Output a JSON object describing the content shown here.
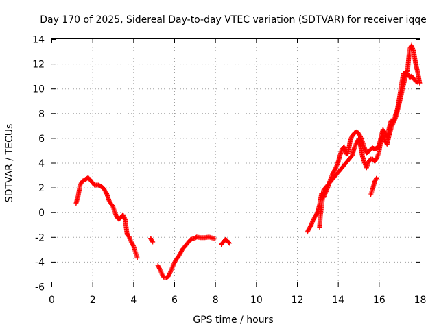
{
  "chart_data": {
    "type": "scatter",
    "title": "Day 170 of 2025, Sidereal Day-to-day VTEC variation (SDTVAR) for receiver iqqe",
    "xlabel": "GPS time / hours",
    "ylabel": "SDTVAR / TECUs",
    "xlim": [
      0,
      18
    ],
    "ylim": [
      -6,
      14
    ],
    "xticks": [
      "0",
      "2",
      "4",
      "6",
      "8",
      "10",
      "12",
      "14",
      "16",
      "18"
    ],
    "yticks": [
      "-6",
      "-4",
      "-2",
      "0",
      "2",
      "4",
      "6",
      "8",
      "10",
      "12",
      "14"
    ],
    "grid": true,
    "marker": "+",
    "series": [
      {
        "name": "SDTVAR",
        "color": "#ff0000",
        "segments": [
          [
            [
              1.2,
              0.7
            ],
            [
              1.3,
              1.3
            ],
            [
              1.4,
              2.2
            ],
            [
              1.5,
              2.5
            ],
            [
              1.7,
              2.7
            ],
            [
              1.8,
              2.8
            ],
            [
              1.9,
              2.6
            ],
            [
              2.0,
              2.4
            ],
            [
              2.1,
              2.2
            ],
            [
              2.2,
              2.2
            ],
            [
              2.3,
              2.2
            ],
            [
              2.4,
              2.1
            ],
            [
              2.5,
              2.0
            ],
            [
              2.6,
              1.8
            ],
            [
              2.7,
              1.5
            ],
            [
              2.8,
              1.0
            ],
            [
              2.9,
              0.7
            ],
            [
              3.0,
              0.5
            ],
            [
              3.1,
              0.0
            ],
            [
              3.2,
              -0.4
            ],
            [
              3.3,
              -0.6
            ],
            [
              3.4,
              -0.4
            ],
            [
              3.5,
              -0.2
            ],
            [
              3.6,
              -0.6
            ],
            [
              3.7,
              -1.8
            ],
            [
              3.8,
              -2.0
            ],
            [
              3.9,
              -2.4
            ],
            [
              4.0,
              -2.7
            ],
            [
              4.1,
              -3.2
            ],
            [
              4.2,
              -3.7
            ]
          ],
          [
            [
              4.85,
              -2.1
            ],
            [
              4.9,
              -2.3
            ],
            [
              4.95,
              -2.4
            ]
          ],
          [
            [
              5.2,
              -4.3
            ],
            [
              5.3,
              -4.6
            ],
            [
              5.4,
              -5.0
            ],
            [
              5.5,
              -5.3
            ],
            [
              5.6,
              -5.3
            ],
            [
              5.7,
              -5.2
            ],
            [
              5.8,
              -4.9
            ],
            [
              5.9,
              -4.5
            ],
            [
              6.0,
              -4.1
            ],
            [
              6.1,
              -3.8
            ],
            [
              6.2,
              -3.6
            ],
            [
              6.3,
              -3.3
            ],
            [
              6.4,
              -3.0
            ],
            [
              6.5,
              -2.8
            ],
            [
              6.6,
              -2.6
            ],
            [
              6.7,
              -2.4
            ],
            [
              6.8,
              -2.2
            ],
            [
              6.9,
              -2.15
            ],
            [
              7.0,
              -2.1
            ],
            [
              7.1,
              -2.0
            ],
            [
              7.3,
              -2.05
            ],
            [
              7.5,
              -2.05
            ],
            [
              7.7,
              -2.0
            ],
            [
              7.9,
              -2.1
            ],
            [
              8.0,
              -2.15
            ]
          ],
          [
            [
              8.3,
              -2.6
            ],
            [
              8.4,
              -2.4
            ],
            [
              8.5,
              -2.2
            ],
            [
              8.6,
              -2.3
            ],
            [
              8.7,
              -2.5
            ]
          ],
          [
            [
              12.5,
              -1.6
            ],
            [
              12.6,
              -1.3
            ],
            [
              12.7,
              -1.0
            ],
            [
              12.8,
              -0.6
            ],
            [
              12.9,
              -0.3
            ],
            [
              13.0,
              0.0
            ],
            [
              13.1,
              0.6
            ],
            [
              13.2,
              1.5
            ],
            [
              13.3,
              1.2
            ],
            [
              13.4,
              1.6
            ],
            [
              13.5,
              2.0
            ],
            [
              13.6,
              2.5
            ],
            [
              13.7,
              3.0
            ],
            [
              13.8,
              3.3
            ],
            [
              13.9,
              3.6
            ],
            [
              14.0,
              4.0
            ],
            [
              14.1,
              4.6
            ],
            [
              14.2,
              5.1
            ],
            [
              14.3,
              5.3
            ],
            [
              14.4,
              4.7
            ],
            [
              14.5,
              4.8
            ],
            [
              14.6,
              5.8
            ],
            [
              14.7,
              6.2
            ],
            [
              14.8,
              6.4
            ],
            [
              14.9,
              6.5
            ],
            [
              15.0,
              6.4
            ],
            [
              15.1,
              6.1
            ],
            [
              15.2,
              5.7
            ],
            [
              15.3,
              5.2
            ],
            [
              15.4,
              4.8
            ],
            [
              15.5,
              4.9
            ],
            [
              15.6,
              5.1
            ],
            [
              15.7,
              5.2
            ],
            [
              15.8,
              5.1
            ],
            [
              15.9,
              5.2
            ],
            [
              16.0,
              5.4
            ],
            [
              16.1,
              6.0
            ],
            [
              16.2,
              6.7
            ],
            [
              16.3,
              6.4
            ],
            [
              16.4,
              6.1
            ],
            [
              16.5,
              6.8
            ],
            [
              16.6,
              7.4
            ],
            [
              16.7,
              7.3
            ],
            [
              16.8,
              7.8
            ],
            [
              16.9,
              8.3
            ],
            [
              17.0,
              9.2
            ],
            [
              17.1,
              10.3
            ],
            [
              17.2,
              11.2
            ],
            [
              17.3,
              11.3
            ],
            [
              17.4,
              11.4
            ],
            [
              17.5,
              13.2
            ],
            [
              17.6,
              13.5
            ],
            [
              17.7,
              13.0
            ],
            [
              17.8,
              12.0
            ],
            [
              17.9,
              11.3
            ],
            [
              18.0,
              10.4
            ]
          ],
          [
            [
              13.1,
              -1.2
            ],
            [
              13.15,
              -0.2
            ],
            [
              13.2,
              0.5
            ],
            [
              13.3,
              1.8
            ],
            [
              14.7,
              4.6
            ],
            [
              14.8,
              5.2
            ],
            [
              14.9,
              5.6
            ],
            [
              15.0,
              5.9
            ],
            [
              15.1,
              5.4
            ],
            [
              15.2,
              4.5
            ],
            [
              15.3,
              4.0
            ],
            [
              15.4,
              3.6
            ],
            [
              15.5,
              4.1
            ],
            [
              15.6,
              4.3
            ],
            [
              15.7,
              4.3
            ],
            [
              15.8,
              4.1
            ],
            [
              15.9,
              4.4
            ],
            [
              16.0,
              4.8
            ],
            [
              16.1,
              5.8
            ],
            [
              16.2,
              6.2
            ],
            [
              16.3,
              5.8
            ],
            [
              16.4,
              5.5
            ],
            [
              16.5,
              6.2
            ],
            [
              16.6,
              6.8
            ],
            [
              16.7,
              7.2
            ],
            [
              16.8,
              7.6
            ],
            [
              16.9,
              8.1
            ],
            [
              17.3,
              11.0
            ],
            [
              17.4,
              11.2
            ],
            [
              17.5,
              10.9
            ],
            [
              17.6,
              11.0
            ],
            [
              17.7,
              10.8
            ],
            [
              17.8,
              10.6
            ],
            [
              17.9,
              10.5
            ]
          ],
          [
            [
              15.6,
              1.4
            ],
            [
              15.7,
              1.9
            ],
            [
              15.8,
              2.5
            ],
            [
              15.9,
              2.8
            ]
          ]
        ]
      }
    ]
  }
}
